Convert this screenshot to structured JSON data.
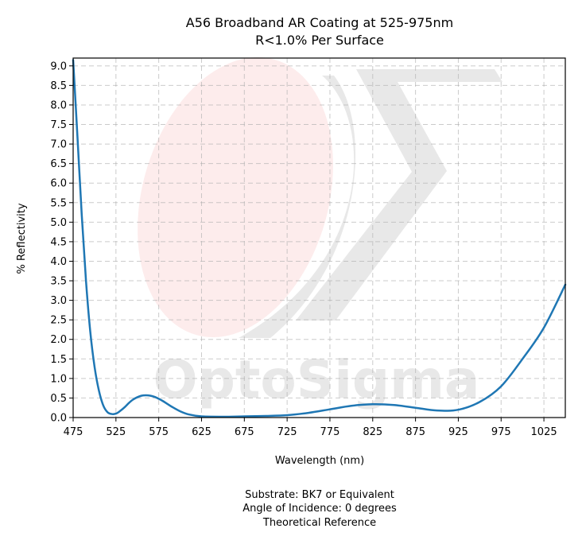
{
  "chart_data": {
    "type": "line",
    "title": [
      "A56 Broadband AR Coating at 525-975nm",
      "R<1.0% Per Surface"
    ],
    "xlabel": "Wavelength (nm)",
    "ylabel": "% Reflectivity",
    "xlim": [
      475,
      1050
    ],
    "ylim": [
      0,
      9.2
    ],
    "xticks": [
      475,
      525,
      575,
      625,
      675,
      725,
      775,
      825,
      875,
      925,
      975,
      1025
    ],
    "yticks": [
      "0.0",
      "0.5",
      "1.0",
      "1.5",
      "2.0",
      "2.5",
      "3.0",
      "3.5",
      "4.0",
      "4.5",
      "5.0",
      "5.5",
      "6.0",
      "6.5",
      "7.0",
      "7.5",
      "8.0",
      "8.5",
      "9.0"
    ],
    "grid": true,
    "line_color": "#1f77b4",
    "watermark": "OptoSigma",
    "series": [
      {
        "x": [
          475,
          480,
          485,
          490,
          495,
          500,
          505,
          510,
          515,
          520,
          525,
          530,
          535,
          540,
          545,
          550,
          555,
          560,
          565,
          570,
          575,
          580,
          585,
          590,
          600,
          610,
          625,
          650,
          675,
          700,
          725,
          750,
          775,
          800,
          825,
          850,
          875,
          900,
          925,
          950,
          975,
          1000,
          1025,
          1050
        ],
        "y": [
          9.15,
          7.2,
          5.2,
          3.5,
          2.2,
          1.3,
          0.7,
          0.32,
          0.14,
          0.09,
          0.1,
          0.17,
          0.26,
          0.37,
          0.46,
          0.52,
          0.56,
          0.57,
          0.56,
          0.53,
          0.48,
          0.42,
          0.35,
          0.28,
          0.16,
          0.08,
          0.03,
          0.02,
          0.03,
          0.04,
          0.06,
          0.12,
          0.21,
          0.3,
          0.34,
          0.32,
          0.25,
          0.18,
          0.2,
          0.4,
          0.8,
          1.5,
          2.3,
          3.4
        ]
      }
    ]
  },
  "notes": [
    "Substrate: BK7 or Equivalent",
    "Angle of Incidence: 0 degrees",
    "Theoretical Reference"
  ]
}
